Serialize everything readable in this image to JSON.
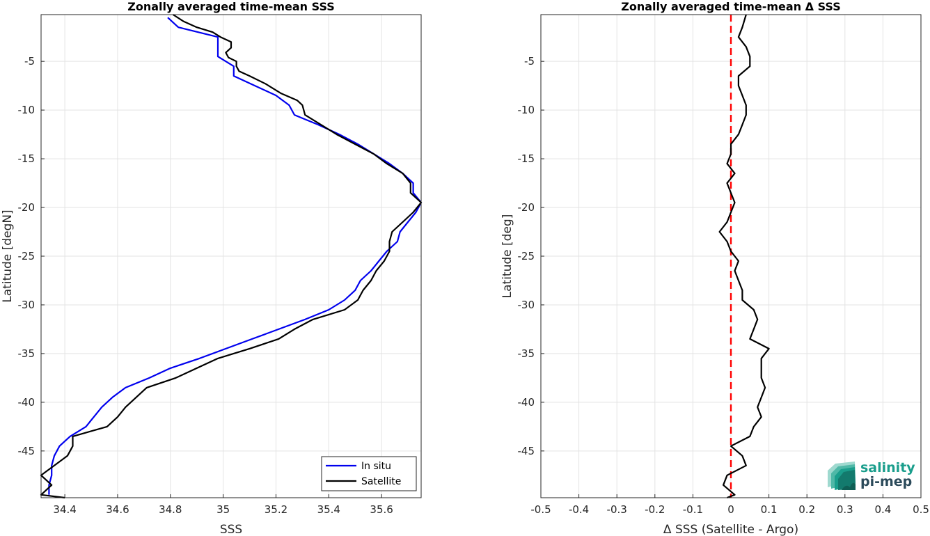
{
  "chart_data": [
    {
      "type": "line",
      "title": "Zonally averaged time-mean SSS",
      "xlabel": "SSS",
      "ylabel": "Latitude [degN]",
      "xlim": [
        34.31,
        35.75
      ],
      "ylim": [
        -49.8,
        -0.2
      ],
      "xticks": [
        34.4,
        34.6,
        34.8,
        35,
        35.2,
        35.4,
        35.6
      ],
      "yticks": [
        -5,
        -10,
        -15,
        -20,
        -25,
        -30,
        -35,
        -40,
        -45
      ],
      "grid": true,
      "legend": {
        "placement": "bottom-right",
        "entries": [
          "In situ",
          "Satellite"
        ]
      },
      "series": [
        {
          "name": "In situ",
          "color": "#0000ee",
          "points": [
            [
              34.79,
              -0.5
            ],
            [
              34.83,
              -1.5
            ],
            [
              34.98,
              -2.5
            ],
            [
              34.98,
              -3.5
            ],
            [
              34.98,
              -4.5
            ],
            [
              35.04,
              -5.5
            ],
            [
              35.04,
              -6.5
            ],
            [
              35.12,
              -7.5
            ],
            [
              35.2,
              -8.5
            ],
            [
              35.25,
              -9.5
            ],
            [
              35.27,
              -10.5
            ],
            [
              35.36,
              -11.5
            ],
            [
              35.44,
              -12.5
            ],
            [
              35.51,
              -13.5
            ],
            [
              35.57,
              -14.5
            ],
            [
              35.63,
              -15.5
            ],
            [
              35.68,
              -16.5
            ],
            [
              35.72,
              -17.5
            ],
            [
              35.72,
              -18.5
            ],
            [
              35.75,
              -19.5
            ],
            [
              35.73,
              -20.5
            ],
            [
              35.7,
              -21.5
            ],
            [
              35.67,
              -22.5
            ],
            [
              35.66,
              -23.5
            ],
            [
              35.62,
              -24.5
            ],
            [
              35.59,
              -25.5
            ],
            [
              35.56,
              -26.5
            ],
            [
              35.52,
              -27.5
            ],
            [
              35.5,
              -28.5
            ],
            [
              35.46,
              -29.5
            ],
            [
              35.4,
              -30.5
            ],
            [
              35.31,
              -31.5
            ],
            [
              35.21,
              -32.5
            ],
            [
              35.11,
              -33.5
            ],
            [
              35.01,
              -34.5
            ],
            [
              34.91,
              -35.5
            ],
            [
              34.8,
              -36.5
            ],
            [
              34.72,
              -37.5
            ],
            [
              34.63,
              -38.5
            ],
            [
              34.58,
              -39.5
            ],
            [
              34.54,
              -40.5
            ],
            [
              34.51,
              -41.5
            ],
            [
              34.48,
              -42.5
            ],
            [
              34.42,
              -43.5
            ],
            [
              34.38,
              -44.5
            ],
            [
              34.36,
              -45.5
            ],
            [
              34.35,
              -46.5
            ],
            [
              34.35,
              -47.5
            ],
            [
              34.34,
              -48.5
            ],
            [
              34.34,
              -49.5
            ]
          ]
        },
        {
          "name": "Satellite",
          "color": "#000000",
          "points": [
            [
              34.81,
              -0.2
            ],
            [
              34.85,
              -0.9
            ],
            [
              34.9,
              -1.5
            ],
            [
              34.96,
              -2.0
            ],
            [
              34.99,
              -2.5
            ],
            [
              35.03,
              -3.0
            ],
            [
              35.03,
              -3.6
            ],
            [
              35.01,
              -4.1
            ],
            [
              35.02,
              -4.6
            ],
            [
              35.05,
              -5.0
            ],
            [
              35.05,
              -5.5
            ],
            [
              35.06,
              -6.0
            ],
            [
              35.1,
              -6.5
            ],
            [
              35.16,
              -7.3
            ],
            [
              35.22,
              -8.3
            ],
            [
              35.28,
              -9.0
            ],
            [
              35.3,
              -9.5
            ],
            [
              35.31,
              -10.5
            ],
            [
              35.37,
              -11.5
            ],
            [
              35.43,
              -12.5
            ],
            [
              35.5,
              -13.5
            ],
            [
              35.57,
              -14.5
            ],
            [
              35.62,
              -15.5
            ],
            [
              35.68,
              -16.5
            ],
            [
              35.71,
              -17.5
            ],
            [
              35.71,
              -18.5
            ],
            [
              35.75,
              -19.5
            ],
            [
              35.72,
              -20.5
            ],
            [
              35.68,
              -21.5
            ],
            [
              35.64,
              -22.5
            ],
            [
              35.63,
              -23.5
            ],
            [
              35.63,
              -24.5
            ],
            [
              35.61,
              -25.5
            ],
            [
              35.58,
              -26.5
            ],
            [
              35.56,
              -27.5
            ],
            [
              35.53,
              -28.5
            ],
            [
              35.51,
              -29.5
            ],
            [
              35.46,
              -30.5
            ],
            [
              35.34,
              -31.5
            ],
            [
              35.27,
              -32.5
            ],
            [
              35.21,
              -33.5
            ],
            [
              35.1,
              -34.5
            ],
            [
              34.98,
              -35.5
            ],
            [
              34.9,
              -36.5
            ],
            [
              34.82,
              -37.5
            ],
            [
              34.71,
              -38.5
            ],
            [
              34.67,
              -39.5
            ],
            [
              34.63,
              -40.5
            ],
            [
              34.6,
              -41.5
            ],
            [
              34.56,
              -42.5
            ],
            [
              34.43,
              -43.5
            ],
            [
              34.43,
              -44.5
            ],
            [
              34.41,
              -45.5
            ],
            [
              34.36,
              -46.5
            ],
            [
              34.31,
              -47.5
            ],
            [
              34.35,
              -48.5
            ],
            [
              34.31,
              -49.5
            ],
            [
              34.4,
              -49.8
            ]
          ]
        }
      ]
    },
    {
      "type": "line",
      "title": "Zonally averaged time-mean Δ SSS",
      "xlabel": "Δ SSS (Satellite - Argo)",
      "ylabel": "Latitude [deg]",
      "xlim": [
        -0.5,
        0.5
      ],
      "ylim": [
        -49.8,
        -0.2
      ],
      "xticks": [
        -0.5,
        -0.4,
        -0.3,
        -0.2,
        -0.1,
        0,
        0.1,
        0.2,
        0.3,
        0.4,
        0.5
      ],
      "xtick_labels": [
        "-0.5",
        "-0.4",
        "-0.3",
        "-0.2",
        "-0.1",
        "0",
        "0.1",
        "0.2",
        "0.3",
        "0.4",
        "0.5"
      ],
      "yticks": [
        -5,
        -10,
        -15,
        -20,
        -25,
        -30,
        -35,
        -40,
        -45
      ],
      "grid": true,
      "reference_line": {
        "x": 0,
        "color": "#ff0000",
        "style": "dashed"
      },
      "series": [
        {
          "color": "#000000",
          "points": [
            [
              0.04,
              -0.2
            ],
            [
              0.03,
              -1.5
            ],
            [
              0.02,
              -2.5
            ],
            [
              0.04,
              -3.5
            ],
            [
              0.05,
              -4.5
            ],
            [
              0.05,
              -5.5
            ],
            [
              0.02,
              -6.5
            ],
            [
              0.02,
              -7.5
            ],
            [
              0.03,
              -8.5
            ],
            [
              0.04,
              -9.5
            ],
            [
              0.04,
              -10.5
            ],
            [
              0.03,
              -11.5
            ],
            [
              0.02,
              -12.5
            ],
            [
              0.0,
              -13.5
            ],
            [
              0.0,
              -14.5
            ],
            [
              -0.01,
              -15.5
            ],
            [
              0.01,
              -16.5
            ],
            [
              -0.01,
              -17.5
            ],
            [
              0.0,
              -18.5
            ],
            [
              0.01,
              -19.5
            ],
            [
              0.0,
              -20.5
            ],
            [
              -0.01,
              -21.5
            ],
            [
              -0.03,
              -22.5
            ],
            [
              -0.01,
              -23.5
            ],
            [
              0.0,
              -24.5
            ],
            [
              0.02,
              -25.5
            ],
            [
              0.01,
              -26.5
            ],
            [
              0.02,
              -27.5
            ],
            [
              0.03,
              -28.5
            ],
            [
              0.03,
              -29.5
            ],
            [
              0.06,
              -30.5
            ],
            [
              0.07,
              -31.5
            ],
            [
              0.06,
              -32.5
            ],
            [
              0.05,
              -33.5
            ],
            [
              0.1,
              -34.5
            ],
            [
              0.08,
              -35.5
            ],
            [
              0.08,
              -36.5
            ],
            [
              0.08,
              -37.5
            ],
            [
              0.09,
              -38.5
            ],
            [
              0.08,
              -39.5
            ],
            [
              0.07,
              -40.5
            ],
            [
              0.08,
              -41.5
            ],
            [
              0.06,
              -42.5
            ],
            [
              0.05,
              -43.5
            ],
            [
              0.0,
              -44.5
            ],
            [
              0.03,
              -45.5
            ],
            [
              0.04,
              -46.5
            ],
            [
              -0.01,
              -47.5
            ],
            [
              -0.02,
              -48.5
            ],
            [
              0.01,
              -49.5
            ],
            [
              -0.01,
              -49.8
            ]
          ]
        }
      ]
    }
  ],
  "logo": {
    "line1": "salinity",
    "line2": "pi-mep"
  }
}
